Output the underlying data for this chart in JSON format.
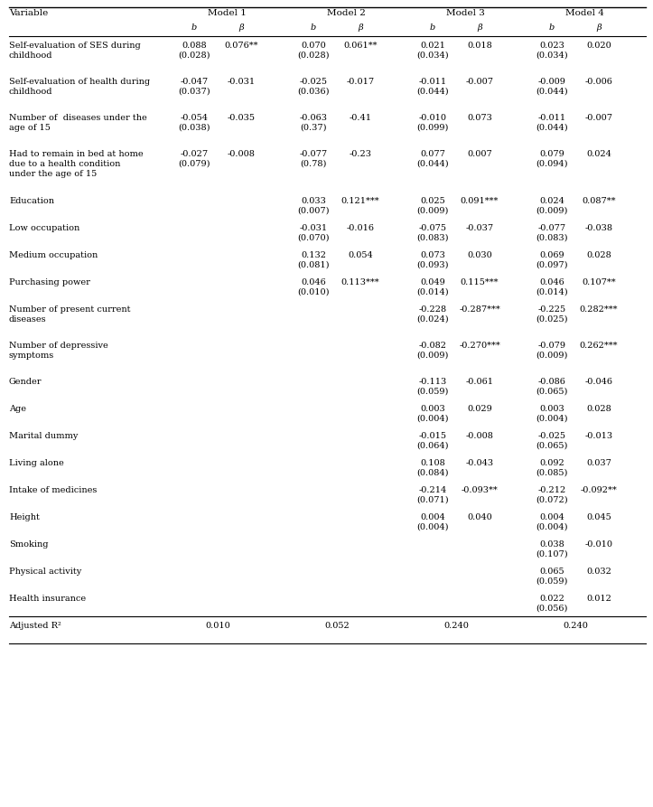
{
  "rows": [
    {
      "var": "Self-evaluation of SES during\nchildhood",
      "m1b": "0.088\n(0.028)",
      "m1beta": "0.076**",
      "m2b": "0.070\n(0.028)",
      "m2beta": "0.061**",
      "m3b": "0.021\n(0.034)",
      "m3beta": "0.018",
      "m4b": "0.023\n(0.034)",
      "m4beta": "0.020",
      "nlines": 2
    },
    {
      "var": "Self-evaluation of health during\nchildhood",
      "m1b": "-0.047\n(0.037)",
      "m1beta": "-0.031",
      "m2b": "-0.025\n(0.036)",
      "m2beta": "-0.017",
      "m3b": "-0.011\n(0.044)",
      "m3beta": "-0.007",
      "m4b": "-0.009\n(0.044)",
      "m4beta": "-0.006",
      "nlines": 2
    },
    {
      "var": "Number of  diseases under the\nage of 15",
      "m1b": "-0.054\n(0.038)",
      "m1beta": "-0.035",
      "m2b": "-0.063\n(0.37)",
      "m2beta": "-0.41",
      "m3b": "-0.010\n(0.099)",
      "m3beta": "0.073",
      "m4b": "-0.011\n(0.044)",
      "m4beta": "-0.007",
      "nlines": 2
    },
    {
      "var": "Had to remain in bed at home\ndue to a health condition\nunder the age of 15",
      "m1b": "-0.027\n(0.079)",
      "m1beta": "-0.008",
      "m2b": "-0.077\n(0.78)",
      "m2beta": "-0.23",
      "m3b": "0.077\n(0.044)",
      "m3beta": "0.007",
      "m4b": "0.079\n(0.094)",
      "m4beta": "0.024",
      "nlines": 3
    },
    {
      "var": "Education",
      "m1b": "",
      "m1beta": "",
      "m2b": "0.033\n(0.007)",
      "m2beta": "0.121***",
      "m3b": "0.025\n(0.009)",
      "m3beta": "0.091***",
      "m4b": "0.024\n(0.009)",
      "m4beta": "0.087**",
      "nlines": 1
    },
    {
      "var": "Low occupation",
      "m1b": "",
      "m1beta": "",
      "m2b": "-0.031\n(0.070)",
      "m2beta": "-0.016",
      "m3b": "-0.075\n(0.083)",
      "m3beta": "-0.037",
      "m4b": "-0.077\n(0.083)",
      "m4beta": "-0.038",
      "nlines": 1
    },
    {
      "var": "Medium occupation",
      "m1b": "",
      "m1beta": "",
      "m2b": "0.132\n(0.081)",
      "m2beta": "0.054",
      "m3b": "0.073\n(0.093)",
      "m3beta": "0.030",
      "m4b": "0.069\n(0.097)",
      "m4beta": "0.028",
      "nlines": 1
    },
    {
      "var": "Purchasing power",
      "m1b": "",
      "m1beta": "",
      "m2b": "0.046\n(0.010)",
      "m2beta": "0.113***",
      "m3b": "0.049\n(0.014)",
      "m3beta": "0.115***",
      "m4b": "0.046\n(0.014)",
      "m4beta": "0.107**",
      "nlines": 1
    },
    {
      "var": "Number of present current\ndiseases",
      "m1b": "",
      "m1beta": "",
      "m2b": "",
      "m2beta": "",
      "m3b": "-0.228\n(0.024)",
      "m3beta": "-0.287***",
      "m4b": "-0.225\n(0.025)",
      "m4beta": "0.282***",
      "nlines": 2
    },
    {
      "var": "Number of depressive\nsymptoms",
      "m1b": "",
      "m1beta": "",
      "m2b": "",
      "m2beta": "",
      "m3b": "-0.082\n(0.009)",
      "m3beta": "-0.270***",
      "m4b": "-0.079\n(0.009)",
      "m4beta": "0.262***",
      "nlines": 2
    },
    {
      "var": "Gender",
      "m1b": "",
      "m1beta": "",
      "m2b": "",
      "m2beta": "",
      "m3b": "-0.113\n(0.059)",
      "m3beta": "-0.061",
      "m4b": "-0.086\n(0.065)",
      "m4beta": "-0.046",
      "nlines": 1
    },
    {
      "var": "Age",
      "m1b": "",
      "m1beta": "",
      "m2b": "",
      "m2beta": "",
      "m3b": "0.003\n(0.004)",
      "m3beta": "0.029",
      "m4b": "0.003\n(0.004)",
      "m4beta": "0.028",
      "nlines": 1
    },
    {
      "var": "Marital dummy",
      "m1b": "",
      "m1beta": "",
      "m2b": "",
      "m2beta": "",
      "m3b": "-0.015\n(0.064)",
      "m3beta": "-0.008",
      "m4b": "-0.025\n(0.065)",
      "m4beta": "-0.013",
      "nlines": 1
    },
    {
      "var": "Living alone",
      "m1b": "",
      "m1beta": "",
      "m2b": "",
      "m2beta": "",
      "m3b": "0.108\n(0.084)",
      "m3beta": "-0.043",
      "m4b": "0.092\n(0.085)",
      "m4beta": "0.037",
      "nlines": 1
    },
    {
      "var": "Intake of medicines",
      "m1b": "",
      "m1beta": "",
      "m2b": "",
      "m2beta": "",
      "m3b": "-0.214\n(0.071)",
      "m3beta": "-0.093**",
      "m4b": "-0.212\n(0.072)",
      "m4beta": "-0.092**",
      "nlines": 1
    },
    {
      "var": "Height",
      "m1b": "",
      "m1beta": "",
      "m2b": "",
      "m2beta": "",
      "m3b": "0.004\n(0.004)",
      "m3beta": "0.040",
      "m4b": "0.004\n(0.004)",
      "m4beta": "0.045",
      "nlines": 1
    },
    {
      "var": "Smoking",
      "m1b": "",
      "m1beta": "",
      "m2b": "",
      "m2beta": "",
      "m3b": "",
      "m3beta": "",
      "m4b": "0.038\n(0.107)",
      "m4beta": "-0.010",
      "nlines": 1
    },
    {
      "var": "Physical activity",
      "m1b": "",
      "m1beta": "",
      "m2b": "",
      "m2beta": "",
      "m3b": "",
      "m3beta": "",
      "m4b": "0.065\n(0.059)",
      "m4beta": "0.032",
      "nlines": 1
    },
    {
      "var": "Health insurance",
      "m1b": "",
      "m1beta": "",
      "m2b": "",
      "m2beta": "",
      "m3b": "",
      "m3beta": "",
      "m4b": "0.022\n(0.056)",
      "m4beta": "0.012",
      "nlines": 1
    },
    {
      "var": "Adjusted R²",
      "m1b": "0.010",
      "m1beta": "",
      "m2b": "0.052",
      "m2beta": "",
      "m3b": "0.240",
      "m3beta": "",
      "m4b": "0.240",
      "m4beta": "",
      "nlines": 1
    }
  ],
  "bg_color": "#ffffff",
  "text_color": "#000000",
  "font_size": 7.0,
  "header_font_size": 7.5
}
